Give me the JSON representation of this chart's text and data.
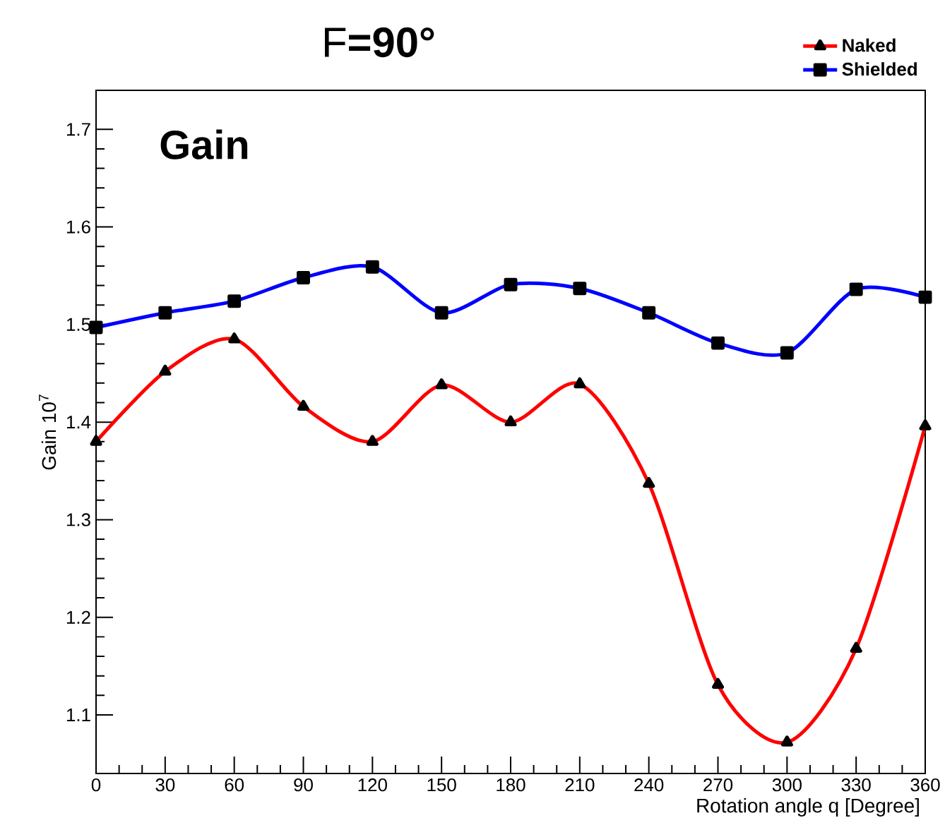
{
  "chart_data": {
    "type": "line",
    "title": "F**=90°**",
    "xlabel": "Rotation angle q [Degree]",
    "ylabel": "Gain 10$^{7}$",
    "annotations": [
      "**Gain**"
    ],
    "x": [
      0,
      30,
      60,
      90,
      120,
      150,
      180,
      210,
      240,
      270,
      300,
      330,
      360
    ],
    "series": [
      {
        "name": "Naked",
        "color": "#ff0000",
        "marker": "triangle",
        "values": [
          1.38,
          1.452,
          1.485,
          1.416,
          1.38,
          1.438,
          1.4,
          1.439,
          1.337,
          1.131,
          1.072,
          1.168,
          1.396
        ]
      },
      {
        "name": "Shielded",
        "color": "#0000ff",
        "marker": "square",
        "values": [
          1.497,
          1.512,
          1.524,
          1.548,
          1.559,
          1.512,
          1.541,
          1.537,
          1.512,
          1.481,
          1.471,
          1.536,
          1.528
        ]
      }
    ],
    "xlim": [
      0,
      360
    ],
    "ylim": [
      1.04,
      1.74
    ],
    "xticks": [
      0,
      30,
      60,
      90,
      120,
      150,
      180,
      210,
      240,
      270,
      300,
      330,
      360
    ],
    "yticks": [
      1.1,
      1.2,
      1.3,
      1.4,
      1.5,
      1.6,
      1.7
    ],
    "grid": false,
    "legend": "top right",
    "line_style": "solid"
  }
}
